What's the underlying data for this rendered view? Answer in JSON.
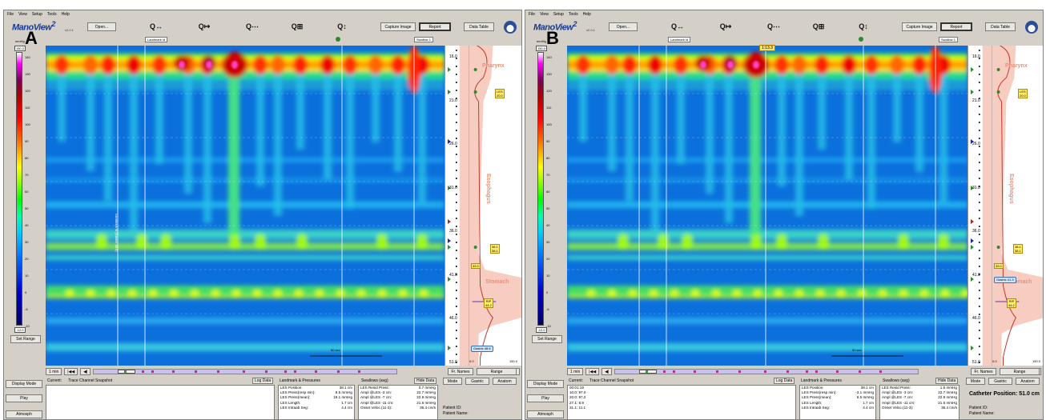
{
  "menu": [
    "File",
    "View",
    "Setup",
    "Tools",
    "Help"
  ],
  "app": {
    "logo": "ManoView",
    "logo_sup": "2",
    "version": "v2.0.1"
  },
  "toolbar": {
    "open": "Open...",
    "capture": "Capture Image",
    "report": "Report",
    "data_table": "Data Table"
  },
  "zoom_icons": [
    "zoom-in-horizontal-icon",
    "zoom-out-horizontal-icon",
    "zoom-fit-icon",
    "zoom-box-icon",
    "zoom-reset-icon"
  ],
  "colorbar": {
    "unit": "mmHg",
    "max": "150.0",
    "min": "-12.0",
    "ticks": [
      "140",
      "130",
      "120",
      "110",
      "100",
      "90",
      "80",
      "70",
      "60",
      "50",
      "40",
      "30",
      "20",
      "10",
      "0",
      "-5",
      "-10"
    ]
  },
  "set_range": "Set Range",
  "left_buttons": {
    "display_mode": "Display Mode",
    "play": "Play",
    "atmosph": "Atmosph"
  },
  "depth_ticks": [
    "16.0",
    "21.0",
    "26.0",
    "31.0",
    "36.0",
    "41.0",
    "46.0",
    "51.0"
  ],
  "side_labels": {
    "pharynx": "Pharynx",
    "esophagus": "Esophagus",
    "stomach": "Stomach"
  },
  "side_bottom": [
    "0.0",
    "150.0"
  ],
  "nav": {
    "one_min": "1 min",
    "scale": "50 sec",
    "fr_names": "Fr. Names",
    "range": "Range",
    "mode": "Mode",
    "gastric": "Gastric",
    "anatom": "Anatom"
  },
  "bottom": {
    "current": "Current:",
    "trace": "Trace Channel Snapshot",
    "log_data": "Log Data",
    "landmark_title": "Landmark & Pressures",
    "swallows_title": "Swallows (avg)",
    "hide_data": "Hide Data",
    "patient_id": "Patient ID:",
    "patient_name": "Patient Name:"
  },
  "panels": [
    {
      "letter": "A",
      "top_labels": [
        "Landmark Id",
        "Swallow 1"
      ],
      "time_marker": "",
      "catheter": "",
      "les_box": [
        "LES",
        "20.0"
      ],
      "les2_box": [
        "38.1",
        "38.1"
      ],
      "box39": "39.0",
      "rip_box": [
        "RIP",
        "44.2"
      ],
      "gastric_box": "Gastric 48.6",
      "vertical_note": "Landmark Id (Gastric 48.6)",
      "log_rows": [],
      "landmarks": [
        [
          "LES Position:",
          "38.1 cm"
        ],
        [
          "LES Press(resp min):",
          "9.5 mmHg"
        ],
        [
          "LES Press(mean):",
          "19.1 mmHg"
        ],
        [
          "LES Length:",
          "1.7 cm"
        ],
        [
          "LES Intraab Seg:",
          "4.4 cm"
        ]
      ],
      "swallows": [
        [
          "LES Resid Press:",
          "0.7 mmHg"
        ],
        [
          "Ampl @LES -3 cm:",
          "22.7 mmHg"
        ],
        [
          "Ampl @LES -7 cm:",
          "22.9 mmHg"
        ],
        [
          "Ampl @LES -11 cm:",
          "21.6 mmHg"
        ],
        [
          "Onset Veloc.(11-3):",
          "36.4 cm/s"
        ]
      ]
    },
    {
      "letter": "B",
      "top_labels": [
        "Landmark Id",
        "Swallow 1"
      ],
      "time_marker": "1:13.3",
      "catheter": "Catheter Position: 51.0 cm",
      "les_box": [
        "LES",
        "20.0"
      ],
      "les2_box": [
        "38.1",
        "38.1"
      ],
      "box39": "39.0",
      "rip_box": [
        "RIP",
        "44.2"
      ],
      "gastric_box": "Gastric 41.3",
      "vertical_note": "",
      "log_rows": [
        "00:01:19",
        "10.0: 97.0",
        "20.0: 97.2",
        "27.1: 8.9",
        "31.1: 11.1"
      ],
      "landmarks": [
        [
          "LES Position:",
          "38.1 cm"
        ],
        [
          "LES Press(resp min):",
          "-3.1 mmHg"
        ],
        [
          "LES Press(mean):",
          "6.5 mmHg"
        ],
        [
          "LES Length:",
          "1.7 cm"
        ],
        [
          "LES Intraab Seg:",
          "4.4 cm"
        ]
      ],
      "swallows": [
        [
          "LES Resid Press:",
          "1.5 mmHg"
        ],
        [
          "Ampl @LES -3 cm:",
          "22.7 mmHg"
        ],
        [
          "Ampl @LES -7 cm:",
          "22.9 mmHg"
        ],
        [
          "Ampl @LES -11 cm:",
          "21.6 mmHg"
        ],
        [
          "Onset Veloc.(11-3):",
          "36.4 cm/s"
        ]
      ]
    }
  ]
}
